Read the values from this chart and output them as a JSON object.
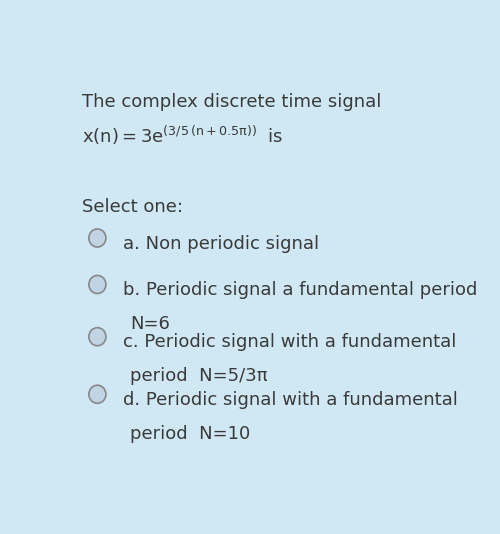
{
  "background_color": "#d0e8f4",
  "title_line1": "The complex discrete time signal",
  "select_label": "Select one:",
  "options": [
    {
      "letter": "a",
      "text": "a. Non periodic signal",
      "multiline": false,
      "line2": ""
    },
    {
      "letter": "b",
      "text": "b. Periodic signal a fundamental period",
      "multiline": true,
      "line2": "N=6"
    },
    {
      "letter": "c",
      "text": "c. Periodic signal with a fundamental",
      "multiline": true,
      "line2": "period  N=5/3π"
    },
    {
      "letter": "d",
      "text": "d. Periodic signal with a fundamental",
      "multiline": true,
      "line2": "period  N=10"
    }
  ],
  "text_color": "#3a3a3a",
  "circle_edge_color": "#888888",
  "circle_face_color": "#c0d4e4",
  "font_size_main": 13,
  "font_size_options": 13
}
